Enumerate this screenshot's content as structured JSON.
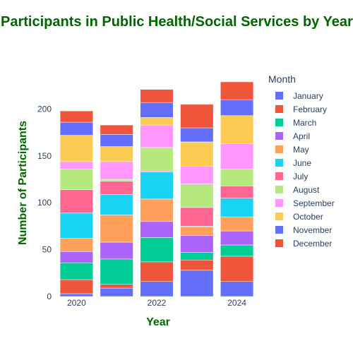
{
  "chart_data": {
    "type": "bar",
    "stacked": true,
    "title": "Participants in Public Health/Social Services by Year",
    "xlabel": "Year",
    "ylabel": "Number of Participants",
    "x": [
      2020,
      2021,
      2022,
      2023,
      2024
    ],
    "x_tick_labels": [
      "2020",
      "2022",
      "2024"
    ],
    "x_tick_values": [
      2020,
      2022,
      2024
    ],
    "ylim": [
      0,
      232
    ],
    "y_ticks": [
      0,
      50,
      100,
      150,
      200
    ],
    "grid": false,
    "legend_title": "Month",
    "legend_position": "right",
    "series": [
      {
        "name": "January",
        "color": "#636efa",
        "values": [
          3,
          9,
          16,
          28,
          16
        ]
      },
      {
        "name": "February",
        "color": "#ef553b",
        "values": [
          15,
          4,
          21,
          11,
          27
        ]
      },
      {
        "name": "March",
        "color": "#00cc96",
        "values": [
          18,
          27,
          26,
          8,
          12
        ]
      },
      {
        "name": "April",
        "color": "#ab63fa",
        "values": [
          12,
          18,
          17,
          18,
          15
        ]
      },
      {
        "name": "May",
        "color": "#ffa15a",
        "values": [
          14,
          29,
          24,
          9,
          15
        ]
      },
      {
        "name": "June",
        "color": "#19d3f3",
        "values": [
          27,
          22,
          29,
          1,
          20
        ]
      },
      {
        "name": "July",
        "color": "#ff6692",
        "values": [
          25,
          14,
          1,
          20,
          13
        ]
      },
      {
        "name": "August",
        "color": "#b6e880",
        "values": [
          22,
          2,
          25,
          25,
          18
        ]
      },
      {
        "name": "September",
        "color": "#ff97ff",
        "values": [
          8,
          19,
          24,
          19,
          27
        ]
      },
      {
        "name": "October",
        "color": "#fecb52",
        "values": [
          28,
          16,
          8,
          26,
          30
        ]
      },
      {
        "name": "November",
        "color": "#636efa",
        "values": [
          14,
          13,
          16,
          15,
          17
        ]
      },
      {
        "name": "December",
        "color": "#ef553b",
        "values": [
          12,
          10,
          14,
          25,
          19
        ]
      }
    ]
  }
}
